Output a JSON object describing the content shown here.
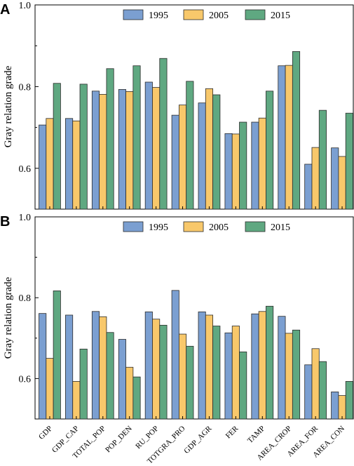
{
  "chart_data": [
    {
      "panel": "A",
      "type": "bar",
      "ylabel": "Gray relation grade",
      "ylim": [
        0.5,
        1.0
      ],
      "yticks": [
        "0.6",
        "0.8",
        "1.0"
      ],
      "categories": [
        "GDP",
        "GDP_CAP",
        "TOTAL_POP",
        "POP_DEN",
        "RU_POP",
        "TOTGRA_PRO",
        "GDP_AGR",
        "FER",
        "TAMP",
        "AREA_CROP",
        "AREA_FOR",
        "AREA_CON"
      ],
      "legend_position": "top",
      "series": [
        {
          "name": "1995",
          "color": "#7B9FD1",
          "values": [
            0.706,
            0.722,
            0.789,
            0.793,
            0.811,
            0.73,
            0.76,
            0.685,
            0.713,
            0.851,
            0.61,
            0.65
          ]
        },
        {
          "name": "2005",
          "color": "#F8C86B",
          "values": [
            0.722,
            0.716,
            0.781,
            0.788,
            0.798,
            0.755,
            0.795,
            0.684,
            0.723,
            0.852,
            0.651,
            0.629
          ]
        },
        {
          "name": "2015",
          "color": "#5FA881",
          "values": [
            0.808,
            0.806,
            0.844,
            0.851,
            0.869,
            0.813,
            0.78,
            0.713,
            0.789,
            0.886,
            0.742,
            0.735
          ]
        }
      ]
    },
    {
      "panel": "B",
      "type": "bar",
      "ylabel": "Gray relation grade",
      "ylim": [
        0.5,
        1.0
      ],
      "yticks": [
        "0.6",
        "0.8",
        "1.0"
      ],
      "categories": [
        "GDP",
        "GDP_CAP",
        "TOTAL_POP",
        "POP_DEN",
        "RU_POP",
        "TOTGRA_PRO",
        "GDP_AGR",
        "FER",
        "TAMP",
        "AREA_CROP",
        "AREA_FOR",
        "AREA_CON"
      ],
      "legend_position": "top",
      "series": [
        {
          "name": "1995",
          "color": "#7B9FD1",
          "values": [
            0.761,
            0.757,
            0.766,
            0.697,
            0.765,
            0.818,
            0.765,
            0.713,
            0.76,
            0.754,
            0.634,
            0.567
          ]
        },
        {
          "name": "2005",
          "color": "#F8C86B",
          "values": [
            0.65,
            0.593,
            0.753,
            0.628,
            0.747,
            0.71,
            0.757,
            0.73,
            0.766,
            0.712,
            0.674,
            0.558
          ]
        },
        {
          "name": "2015",
          "color": "#5FA881",
          "values": [
            0.817,
            0.673,
            0.714,
            0.604,
            0.732,
            0.68,
            0.73,
            0.666,
            0.779,
            0.72,
            0.642,
            0.593
          ]
        }
      ]
    }
  ]
}
